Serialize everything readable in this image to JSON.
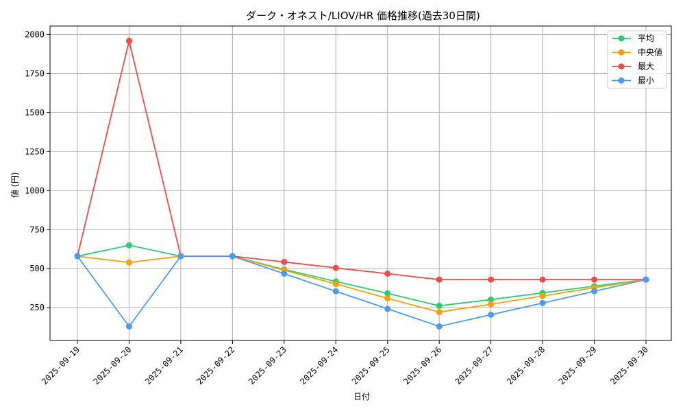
{
  "chart_data": {
    "type": "line",
    "title": "ダーク・オネスト/LIOV/HR 価格推移(過去30日間)",
    "xlabel": "日付",
    "ylabel": "値 (円)",
    "categories": [
      "2025-09-19",
      "2025-09-20",
      "2025-09-21",
      "2025-09-22",
      "2025-09-23",
      "2025-09-24",
      "2025-09-25",
      "2025-09-26",
      "2025-09-27",
      "2025-09-28",
      "2025-09-29",
      "2025-09-30"
    ],
    "ylim": [
      40,
      2055
    ],
    "yticks": [
      250,
      500,
      750,
      1000,
      1250,
      1500,
      1750,
      2000
    ],
    "grid": true,
    "legend_position": "top-right",
    "series": [
      {
        "name": "平均",
        "color": "#2ecc71",
        "values": [
          580,
          650,
          580,
          580,
          495,
          418,
          342,
          262,
          302,
          345,
          388,
          430
        ]
      },
      {
        "name": "中央値",
        "color": "#f5a20a",
        "values": [
          580,
          540,
          580,
          580,
          490,
          402,
          310,
          222,
          272,
          325,
          378,
          430
        ]
      },
      {
        "name": "最大",
        "color": "#ef4b4b",
        "values": [
          580,
          1960,
          580,
          580,
          543,
          505,
          468,
          430,
          430,
          430,
          430,
          430
        ]
      },
      {
        "name": "最小",
        "color": "#4b9cf0",
        "values": [
          580,
          130,
          580,
          580,
          468,
          355,
          243,
          130,
          205,
          280,
          355,
          430
        ]
      }
    ]
  }
}
